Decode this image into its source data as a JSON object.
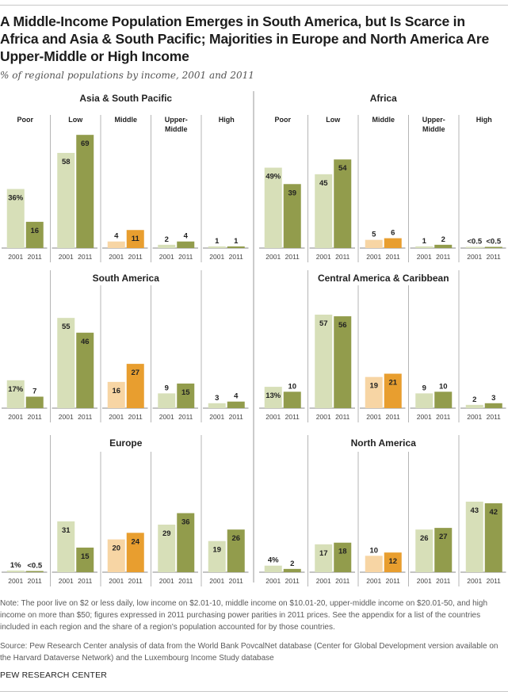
{
  "header": {
    "title": "A Middle-Income Population Emerges in South America, but Is Scarce in Africa and Asia & South Pacific; Majorities in Europe and North America Are Upper-Middle or High Income",
    "subtitle": "% of regional populations by income, 2001 and 2011"
  },
  "colors": {
    "bar_2001": "#d7dfb8",
    "bar_2011": "#929c4c",
    "middle_2001": "#f7d5a4",
    "middle_2011": "#e89e2f",
    "divider": "#b5b5b5",
    "panel_divider": "#999999",
    "axis": "#888888"
  },
  "chart_data": {
    "type": "bar",
    "title": "A Middle-Income Population Emerges in South America, but Is Scarce in Africa and Asia & South Pacific; Majorities in Europe and North America Are Upper-Middle or High Income",
    "subtitle": "% of regional populations by income, 2001 and 2011",
    "categories": [
      "Poor",
      "Low",
      "Middle",
      "Upper-Middle",
      "High"
    ],
    "category_labels": [
      [
        "Poor"
      ],
      [
        "Low"
      ],
      [
        "Middle"
      ],
      [
        "Upper-",
        "Middle"
      ],
      [
        "High"
      ]
    ],
    "years": [
      "2001",
      "2011"
    ],
    "unit": "%",
    "ylim": [
      0,
      70
    ],
    "grid": false,
    "panels": [
      {
        "region": "Asia & South Pacific",
        "series": [
          {
            "name": "2001",
            "values": [
              36,
              58,
              4,
              2,
              1
            ],
            "labels": [
              "36%",
              "58",
              "4",
              "2",
              "1"
            ]
          },
          {
            "name": "2011",
            "values": [
              16,
              69,
              11,
              4,
              1
            ],
            "labels": [
              "16",
              "69",
              "11",
              "4",
              "1"
            ]
          }
        ]
      },
      {
        "region": "Africa",
        "series": [
          {
            "name": "2001",
            "values": [
              49,
              45,
              5,
              1,
              0.2
            ],
            "labels": [
              "49%",
              "45",
              "5",
              "1",
              "<0.5"
            ]
          },
          {
            "name": "2011",
            "values": [
              39,
              54,
              6,
              2,
              0.2
            ],
            "labels": [
              "39",
              "54",
              "6",
              "2",
              "<0.5"
            ]
          }
        ]
      },
      {
        "region": "South America",
        "series": [
          {
            "name": "2001",
            "values": [
              17,
              55,
              16,
              9,
              3
            ],
            "labels": [
              "17%",
              "55",
              "16",
              "9",
              "3"
            ]
          },
          {
            "name": "2011",
            "values": [
              7,
              46,
              27,
              15,
              4
            ],
            "labels": [
              "7",
              "46",
              "27",
              "15",
              "4"
            ]
          }
        ]
      },
      {
        "region": "Central America & Caribbean",
        "series": [
          {
            "name": "2001",
            "values": [
              13,
              57,
              19,
              9,
              2
            ],
            "labels": [
              "13%",
              "57",
              "19",
              "9",
              "2"
            ]
          },
          {
            "name": "2011",
            "values": [
              10,
              56,
              21,
              10,
              3
            ],
            "labels": [
              "10",
              "56",
              "21",
              "10",
              "3"
            ]
          }
        ]
      },
      {
        "region": "Europe",
        "series": [
          {
            "name": "2001",
            "values": [
              1,
              31,
              20,
              29,
              19
            ],
            "labels": [
              "1%",
              "31",
              "20",
              "29",
              "19"
            ]
          },
          {
            "name": "2011",
            "values": [
              0.2,
              15,
              24,
              36,
              26
            ],
            "labels": [
              "<0.5",
              "15",
              "24",
              "36",
              "26"
            ]
          }
        ]
      },
      {
        "region": "North America",
        "series": [
          {
            "name": "2001",
            "values": [
              4,
              17,
              10,
              26,
              43
            ],
            "labels": [
              "4%",
              "17",
              "10",
              "26",
              "43"
            ]
          },
          {
            "name": "2011",
            "values": [
              2,
              18,
              12,
              27,
              42
            ],
            "labels": [
              "2",
              "18",
              "12",
              "27",
              "42"
            ]
          }
        ]
      }
    ]
  },
  "footer": {
    "note": "Note: The poor live on $2 or less daily, low income on $2.01-10, middle income on $10.01-20, upper-middle income on $20.01-50, and high income on more than $50; figures expressed in 2011 purchasing power parities in 2011 prices. See the appendix for a list of the countries included in each region and the share of a region's population accounted for by those countries.",
    "source": "Source: Pew Research Center analysis of data from the World Bank PovcalNet database (Center for Global Development version available on the Harvard Dataverse Network) and the Luxembourg Income Study database",
    "brand": "PEW RESEARCH CENTER"
  }
}
